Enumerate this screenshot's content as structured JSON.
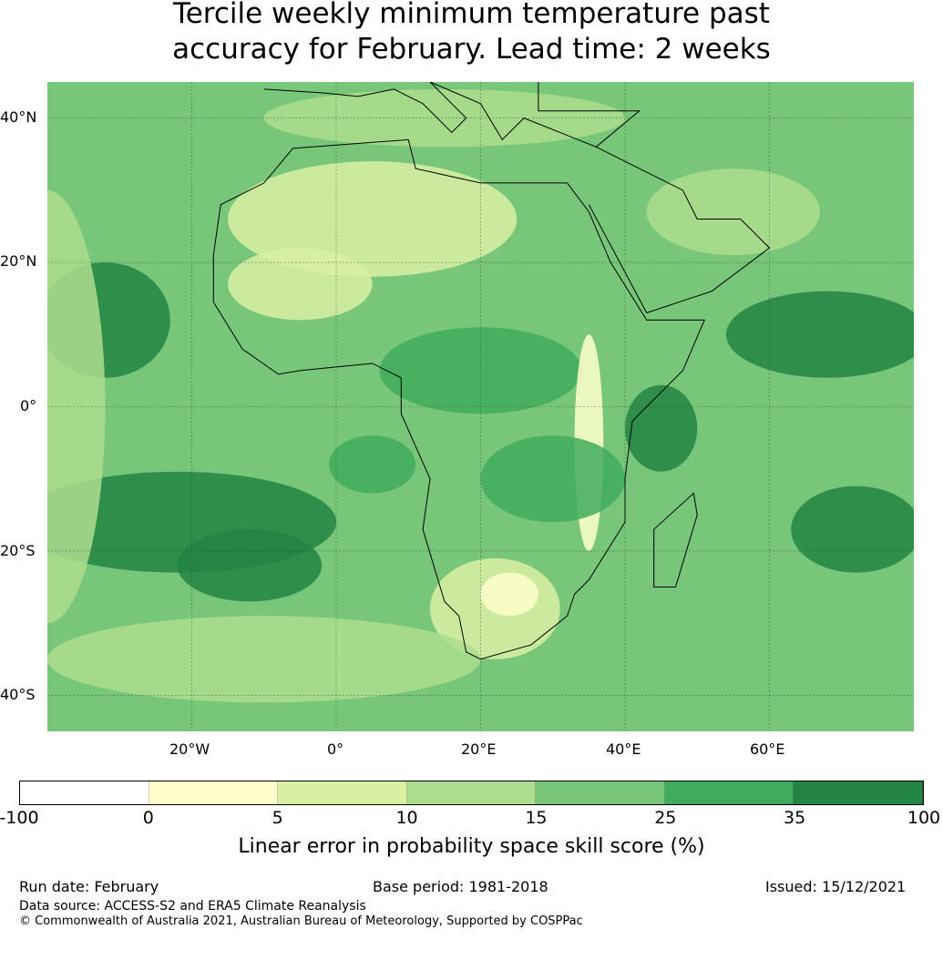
{
  "title_line1": "Tercile weekly minimum temperature past",
  "title_line2": "accuracy for February. Lead time: 2 weeks",
  "lat_labels": [
    "40°N",
    "20°N",
    "0°",
    "20°S",
    "40°S"
  ],
  "lon_labels": [
    "20°W",
    "0°",
    "20°E",
    "40°E",
    "60°E"
  ],
  "colorbar": {
    "ticks": [
      "-100",
      "0",
      "5",
      "10",
      "15",
      "25",
      "35",
      "100"
    ],
    "colors": [
      "#ffffff",
      "#ffffcc",
      "#d9f0a3",
      "#addd8e",
      "#78c679",
      "#41ab5d",
      "#238443"
    ],
    "label": "Linear error in probability space skill score (%)"
  },
  "footer": {
    "run_date": "Run date: February",
    "base_period": "Base period: 1981-2018",
    "issued": "Issued: 15/12/2021",
    "data_source": "Data source: ACCESS-S2 and ERA5 Climate Reanalysis",
    "copyright": "© Commonwealth of Australia 2021, Australian Bureau of Meteorology, Supported by COSPPac"
  }
}
